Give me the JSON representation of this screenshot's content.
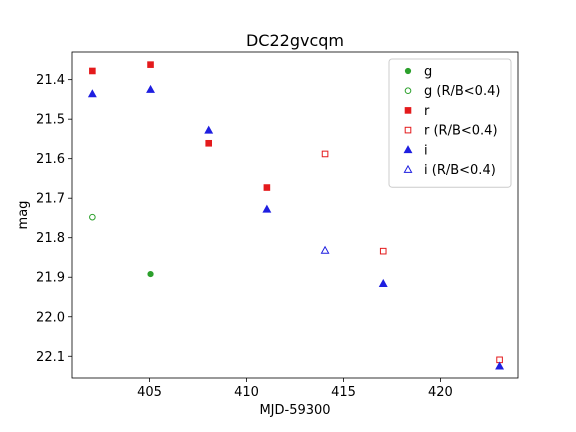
{
  "chart_data": {
    "type": "scatter",
    "title": "DC22gvcqm",
    "xlabel": "MJD-59300",
    "ylabel": "mag",
    "xlim": [
      401.0,
      424.0
    ],
    "ylim": [
      22.155,
      21.33
    ],
    "y_inverted": true,
    "x_ticks": [
      405,
      410,
      415,
      420
    ],
    "x_tick_labels": [
      "405",
      "410",
      "415",
      "420"
    ],
    "y_ticks": [
      21.4,
      21.5,
      21.6,
      21.7,
      21.8,
      21.9,
      22.0,
      22.1
    ],
    "y_tick_labels": [
      "21.4",
      "21.5",
      "21.6",
      "21.7",
      "21.8",
      "21.9",
      "22.0",
      "22.1"
    ],
    "grid": false,
    "legend_position": "top-right",
    "series": [
      {
        "name": "g",
        "color": "#2ca02c",
        "marker": "circle",
        "filled": true,
        "points": [
          {
            "x": 405.05,
            "y": 21.892
          }
        ]
      },
      {
        "name": "g (R/B<0.4)",
        "color": "#2ca02c",
        "marker": "circle",
        "filled": false,
        "points": [
          {
            "x": 402.05,
            "y": 21.748
          }
        ]
      },
      {
        "name": "r",
        "color": "#e41a1c",
        "marker": "square",
        "filled": true,
        "points": [
          {
            "x": 402.05,
            "y": 21.378
          },
          {
            "x": 405.05,
            "y": 21.362
          },
          {
            "x": 408.05,
            "y": 21.561
          },
          {
            "x": 411.05,
            "y": 21.673
          }
        ]
      },
      {
        "name": "r (R/B<0.4)",
        "color": "#e41a1c",
        "marker": "square",
        "filled": false,
        "points": [
          {
            "x": 414.05,
            "y": 21.588
          },
          {
            "x": 417.05,
            "y": 21.834
          },
          {
            "x": 423.05,
            "y": 22.109
          }
        ]
      },
      {
        "name": "i",
        "color": "#1f1fe0",
        "marker": "triangle",
        "filled": true,
        "points": [
          {
            "x": 402.05,
            "y": 21.436
          },
          {
            "x": 405.05,
            "y": 21.425
          },
          {
            "x": 408.05,
            "y": 21.528
          },
          {
            "x": 411.05,
            "y": 21.728
          },
          {
            "x": 417.05,
            "y": 21.916
          },
          {
            "x": 423.05,
            "y": 22.125
          }
        ]
      },
      {
        "name": "i (R/B<0.4)",
        "color": "#1f1fe0",
        "marker": "triangle",
        "filled": false,
        "points": [
          {
            "x": 414.05,
            "y": 21.832
          }
        ]
      }
    ]
  }
}
